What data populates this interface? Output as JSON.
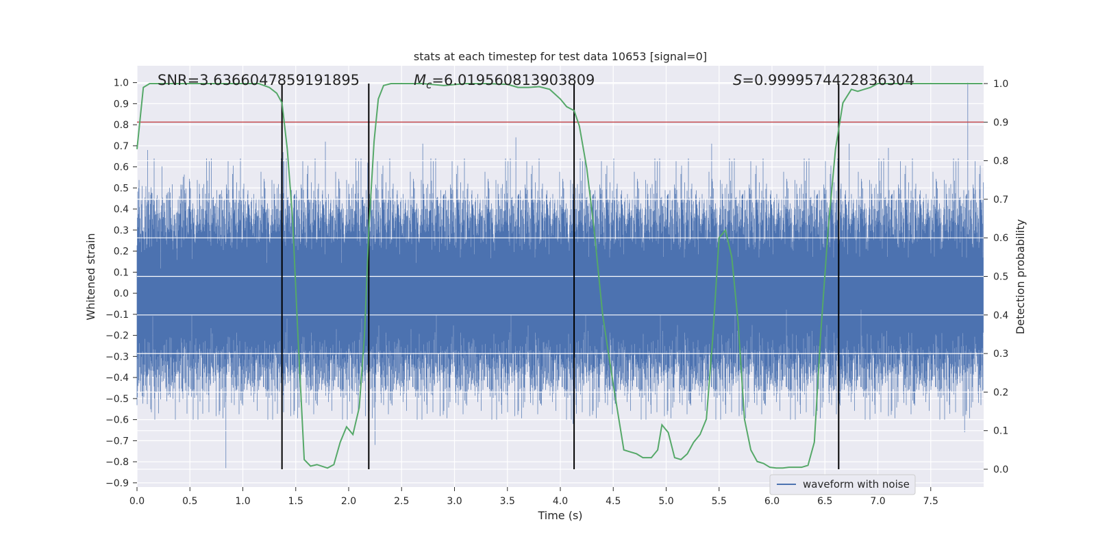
{
  "chart_data": {
    "type": "line",
    "title": "stats at each timestep for test data 10653 [signal=0]",
    "xlabel": "Time (s)",
    "ylabel": "Whitened strain",
    "y2label": "Detection probability",
    "xlim": [
      0.0,
      8.0
    ],
    "ylim": [
      -0.92,
      1.08
    ],
    "y2lim": [
      -0.0462,
      1.0462
    ],
    "x_ticks": [
      0.0,
      0.5,
      1.0,
      1.5,
      2.0,
      2.5,
      3.0,
      3.5,
      4.0,
      4.5,
      5.0,
      5.5,
      6.0,
      6.5,
      7.0,
      7.5
    ],
    "y_ticks": [
      1.0,
      0.9,
      0.8,
      0.7,
      0.6,
      0.5,
      0.4,
      0.3,
      0.2,
      0.1,
      0.0,
      -0.1,
      -0.2,
      -0.3,
      -0.4,
      -0.5,
      -0.6,
      -0.7,
      -0.8,
      -0.9
    ],
    "y2_ticks": [
      1.0,
      0.9,
      0.8,
      0.7,
      0.6,
      0.5,
      0.4,
      0.3,
      0.2,
      0.1,
      0.0
    ],
    "grid": true,
    "legend_position": "bottom-right",
    "annotations": {
      "snr": "SNR=3.6366047859191895",
      "mc_symbol": "M",
      "mc_sub": "c",
      "mc_value": "=6.019560813903809",
      "s_symbol": "S",
      "s_value": "=0.9999574422836304"
    },
    "threshold": {
      "axis": "y2",
      "value": 0.9,
      "color": "#c44e52"
    },
    "vertical_lines": [
      1.37,
      2.19,
      4.13,
      6.63
    ],
    "series": [
      {
        "name": "waveform with noise",
        "axis": "y",
        "color": "#4c72b0",
        "kind": "noise",
        "rms": 0.19,
        "duration_s": 8.0,
        "notable_peaks": [
          {
            "x": 0.1,
            "y": 0.68
          },
          {
            "x": 0.84,
            "y": -0.83
          },
          {
            "x": 1.38,
            "y": 0.67
          },
          {
            "x": 1.78,
            "y": 0.72
          },
          {
            "x": 2.18,
            "y": 0.62
          },
          {
            "x": 2.25,
            "y": -0.72
          },
          {
            "x": 2.7,
            "y": 0.71
          },
          {
            "x": 3.58,
            "y": 0.74
          },
          {
            "x": 4.12,
            "y": -0.62
          },
          {
            "x": 5.43,
            "y": 0.71
          },
          {
            "x": 6.73,
            "y": 0.71
          },
          {
            "x": 7.1,
            "y": 0.69
          },
          {
            "x": 7.85,
            "y": 1.0
          },
          {
            "x": 7.82,
            "y": -0.66
          }
        ]
      },
      {
        "name": "Detection probability",
        "axis": "y2",
        "color": "#55a868",
        "x": [
          0.0,
          0.06,
          0.12,
          0.2,
          0.4,
          0.6,
          0.8,
          1.0,
          1.15,
          1.25,
          1.32,
          1.37,
          1.42,
          1.47,
          1.52,
          1.58,
          1.64,
          1.7,
          1.8,
          1.86,
          1.92,
          1.98,
          2.04,
          2.1,
          2.15,
          2.19,
          2.24,
          2.28,
          2.33,
          2.4,
          2.5,
          2.7,
          2.9,
          3.1,
          3.3,
          3.5,
          3.6,
          3.7,
          3.8,
          3.9,
          4.0,
          4.06,
          4.13,
          4.18,
          4.25,
          4.32,
          4.4,
          4.5,
          4.6,
          4.66,
          4.72,
          4.78,
          4.86,
          4.92,
          4.96,
          5.02,
          5.08,
          5.14,
          5.2,
          5.26,
          5.32,
          5.38,
          5.44,
          5.5,
          5.56,
          5.62,
          5.68,
          5.74,
          5.8,
          5.86,
          5.92,
          5.98,
          6.04,
          6.1,
          6.16,
          6.22,
          6.28,
          6.34,
          6.4,
          6.46,
          6.53,
          6.6,
          6.67,
          6.75,
          6.81,
          6.87,
          6.93,
          7.0,
          7.2,
          7.4,
          7.6,
          7.8,
          7.99
        ],
        "values": [
          0.83,
          0.99,
          1.0,
          1.0,
          1.0,
          1.0,
          1.0,
          1.0,
          1.0,
          0.99,
          0.975,
          0.95,
          0.83,
          0.65,
          0.35,
          0.025,
          0.008,
          0.012,
          0.003,
          0.012,
          0.07,
          0.11,
          0.09,
          0.16,
          0.35,
          0.62,
          0.85,
          0.96,
          0.995,
          1.0,
          1.0,
          1.0,
          0.995,
          1.0,
          1.0,
          0.998,
          0.99,
          0.99,
          0.992,
          0.985,
          0.96,
          0.94,
          0.93,
          0.89,
          0.78,
          0.62,
          0.4,
          0.22,
          0.05,
          0.045,
          0.04,
          0.03,
          0.03,
          0.05,
          0.115,
          0.095,
          0.03,
          0.025,
          0.04,
          0.07,
          0.09,
          0.13,
          0.34,
          0.6,
          0.62,
          0.55,
          0.38,
          0.13,
          0.05,
          0.02,
          0.015,
          0.005,
          0.003,
          0.003,
          0.005,
          0.005,
          0.005,
          0.01,
          0.07,
          0.35,
          0.62,
          0.83,
          0.95,
          0.985,
          0.98,
          0.985,
          0.99,
          1.0,
          1.0,
          1.0,
          1.0,
          1.0,
          1.0
        ]
      }
    ]
  }
}
